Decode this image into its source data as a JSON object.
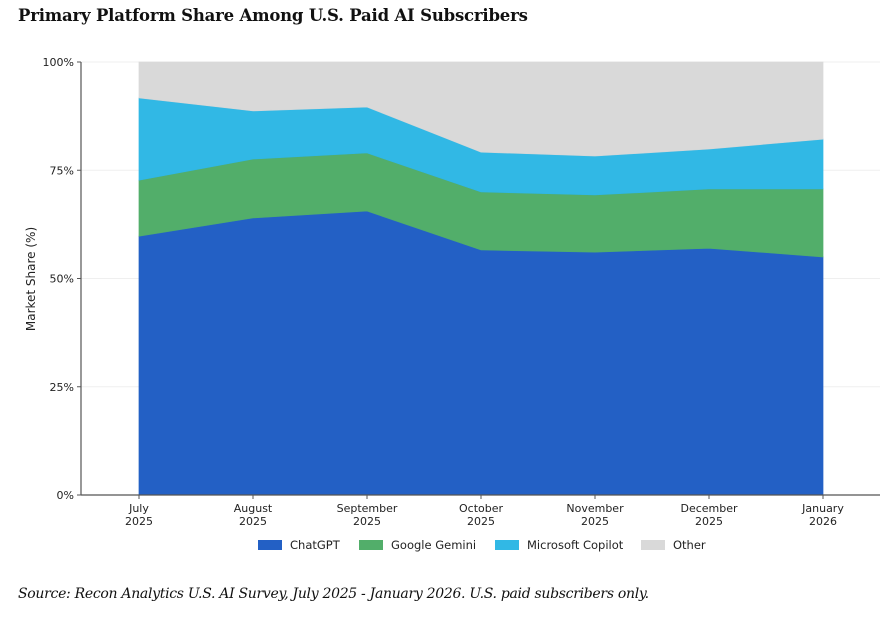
{
  "header": {
    "title": "Primary Platform Share Among U.S. Paid AI Subscribers"
  },
  "footer": {
    "source": "Source: Recon Analytics U.S. AI Survey, July 2025 - January 2026. U.S. paid subscribers only."
  },
  "chart_data": {
    "type": "area",
    "stacked": true,
    "title": "Primary Platform Share Among U.S. Paid AI Subscribers",
    "xlabel": "",
    "ylabel": "Market Share (%)",
    "ylim": [
      0,
      100
    ],
    "yticks": [
      0,
      25,
      50,
      75,
      100
    ],
    "ytick_labels": [
      "0%",
      "25%",
      "50%",
      "75%",
      "100%"
    ],
    "categories": [
      [
        "July",
        "2025"
      ],
      [
        "August",
        "2025"
      ],
      [
        "September",
        "2025"
      ],
      [
        "October",
        "2025"
      ],
      [
        "November",
        "2025"
      ],
      [
        "December",
        "2025"
      ],
      [
        "January",
        "2026"
      ]
    ],
    "series": [
      {
        "name": "ChatGPT",
        "color": "#2360C5",
        "values": [
          59.8,
          64.0,
          65.6,
          56.6,
          56.1,
          57.0,
          55.0
        ]
      },
      {
        "name": "Google Gemini",
        "color": "#52AE6A",
        "values": [
          12.9,
          13.6,
          13.4,
          13.4,
          13.2,
          13.7,
          15.7
        ]
      },
      {
        "name": "Microsoft Copilot",
        "color": "#31B8E5",
        "values": [
          19.0,
          11.1,
          10.6,
          9.2,
          9.0,
          9.2,
          11.5
        ]
      },
      {
        "name": "Other",
        "color": "#D9D9D9",
        "values": [
          8.3,
          11.3,
          10.4,
          20.8,
          21.7,
          20.1,
          17.8
        ]
      }
    ],
    "grid": true,
    "legend_position": "bottom-center"
  }
}
